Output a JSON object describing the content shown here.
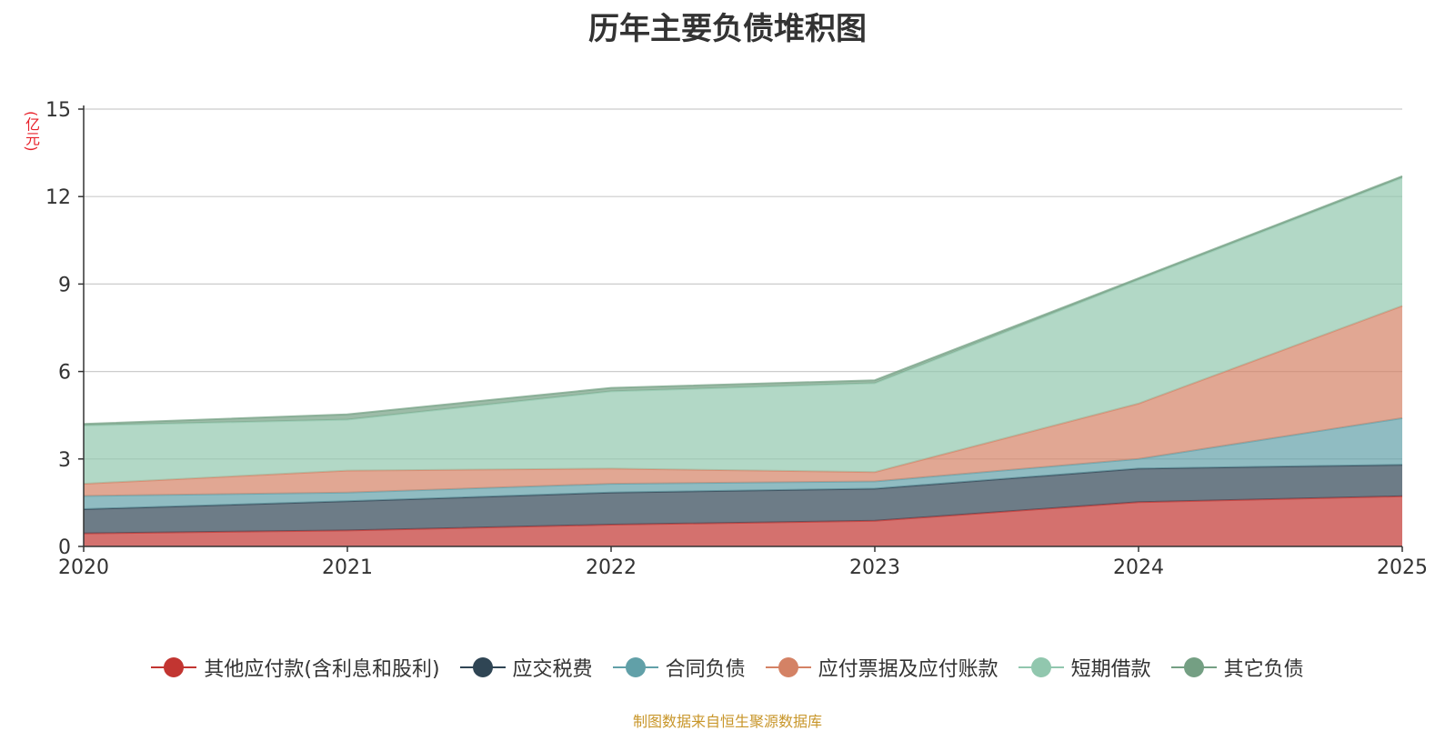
{
  "chart_data": {
    "type": "area",
    "stacked": true,
    "title": "历年主要负债堆积图",
    "ylabel": "(亿元)",
    "xlabel": "",
    "categories": [
      "2020",
      "2021",
      "2022",
      "2023",
      "2024",
      "2025"
    ],
    "ylim": [
      0,
      15
    ],
    "yticks": [
      0,
      3,
      6,
      9,
      12,
      15
    ],
    "series": [
      {
        "name": "其他应付款(含利息和股利)",
        "color": "#c23531",
        "values": [
          0.45,
          0.55,
          0.75,
          0.88,
          1.52,
          1.72
        ]
      },
      {
        "name": "应交税费",
        "color": "#2f4554",
        "values": [
          0.83,
          1.0,
          1.1,
          1.1,
          1.15,
          1.08
        ]
      },
      {
        "name": "合同负债",
        "color": "#61a0a8",
        "values": [
          0.45,
          0.3,
          0.3,
          0.25,
          0.33,
          1.6
        ]
      },
      {
        "name": "应付票据及应付账款",
        "color": "#d48265",
        "values": [
          0.42,
          0.75,
          0.52,
          0.32,
          1.9,
          3.85
        ]
      },
      {
        "name": "短期借款",
        "color": "#91c7ae",
        "values": [
          2.0,
          1.75,
          2.65,
          3.05,
          4.25,
          4.4
        ]
      },
      {
        "name": "其它负债",
        "color": "#749f83",
        "values": [
          0.05,
          0.18,
          0.12,
          0.1,
          0.05,
          0.05
        ]
      }
    ],
    "legend_position": "bottom-center",
    "grid": true
  },
  "source_note": "制图数据来自恒生聚源数据库"
}
